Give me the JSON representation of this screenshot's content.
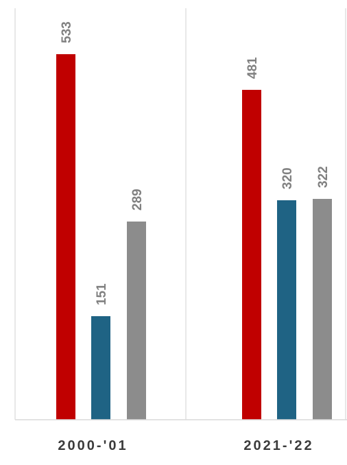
{
  "chart_data": {
    "type": "bar",
    "categories": [
      "2000-'01",
      "2021-'22"
    ],
    "series": [
      {
        "values": [
          533,
          481
        ],
        "color": "#c00000"
      },
      {
        "values": [
          151,
          320
        ],
        "color": "#1f6384"
      },
      {
        "values": [
          289,
          322
        ],
        "color": "#8c8c8c"
      }
    ],
    "ylim": [
      0,
      533
    ],
    "grid": false,
    "data_labels": true,
    "label_rotation": "vertical",
    "colors": {
      "axis": "#d9d9d9",
      "value_label": "#808080",
      "category_label": "#3b3b3b"
    }
  }
}
